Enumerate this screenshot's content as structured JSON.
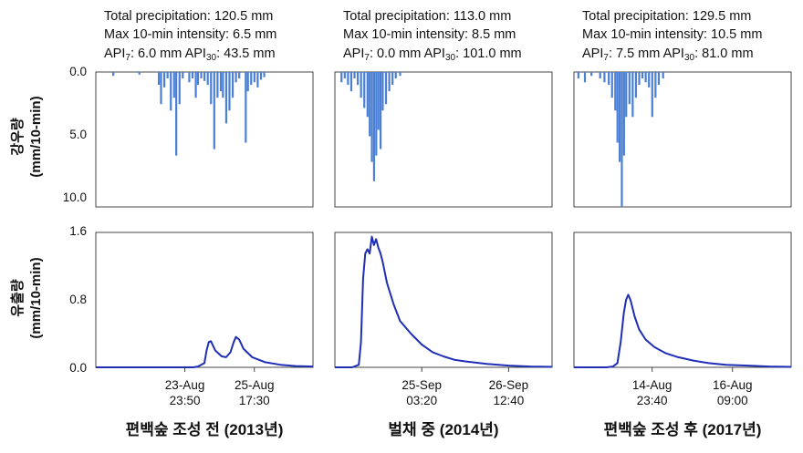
{
  "figure": {
    "rain_ylabel": [
      "강우량",
      "(mm/10-min)"
    ],
    "flow_ylabel": [
      "유출량",
      "(mm/10-min)"
    ],
    "rain_ticks": [
      "0.0",
      "5.0",
      "10.0"
    ],
    "flow_ticks": [
      "1.6",
      "0.8",
      "0.0"
    ]
  },
  "chart_data": [
    {
      "type": "bar",
      "period": "편백숲 조성 전 (2013년)",
      "stats": {
        "line1": "Total precipitation: 120.5 mm",
        "line2": "Max 10-min intensity: 6.5 mm",
        "api7_label": "API",
        "api7_sub": "7",
        "api7_value": ": 6.0 mm",
        "api30_label": "API",
        "api30_sub": "30",
        "api30_value": ": 43.5 mm"
      },
      "rainfall": {
        "ylim": [
          0,
          10.5
        ],
        "inverted": true,
        "bars": [
          {
            "x": 0.08,
            "v": 0.3
          },
          {
            "x": 0.2,
            "v": 0.2
          },
          {
            "x": 0.29,
            "v": 1.0
          },
          {
            "x": 0.3,
            "v": 2.5
          },
          {
            "x": 0.315,
            "v": 1.2
          },
          {
            "x": 0.33,
            "v": 0.5
          },
          {
            "x": 0.345,
            "v": 3.0
          },
          {
            "x": 0.36,
            "v": 2.0
          },
          {
            "x": 0.37,
            "v": 6.5
          },
          {
            "x": 0.385,
            "v": 2.5
          },
          {
            "x": 0.4,
            "v": 0.5
          },
          {
            "x": 0.43,
            "v": 0.8
          },
          {
            "x": 0.445,
            "v": 0.5
          },
          {
            "x": 0.46,
            "v": 2.0
          },
          {
            "x": 0.47,
            "v": 1.0
          },
          {
            "x": 0.485,
            "v": 0.5
          },
          {
            "x": 0.5,
            "v": 0.7
          },
          {
            "x": 0.515,
            "v": 1.0
          },
          {
            "x": 0.53,
            "v": 2.5
          },
          {
            "x": 0.545,
            "v": 6.0
          },
          {
            "x": 0.56,
            "v": 2.0
          },
          {
            "x": 0.575,
            "v": 1.5
          },
          {
            "x": 0.585,
            "v": 2.0
          },
          {
            "x": 0.6,
            "v": 4.0
          },
          {
            "x": 0.615,
            "v": 3.0
          },
          {
            "x": 0.63,
            "v": 2.0
          },
          {
            "x": 0.645,
            "v": 0.8
          },
          {
            "x": 0.66,
            "v": 0.5
          },
          {
            "x": 0.69,
            "v": 5.5
          },
          {
            "x": 0.7,
            "v": 1.5
          },
          {
            "x": 0.715,
            "v": 1.0
          },
          {
            "x": 0.73,
            "v": 0.8
          },
          {
            "x": 0.745,
            "v": 1.2
          },
          {
            "x": 0.76,
            "v": 0.6
          },
          {
            "x": 0.775,
            "v": 0.4
          }
        ]
      },
      "runoff": {
        "ylim": [
          0,
          1.6
        ],
        "points": [
          [
            0,
            0
          ],
          [
            0.3,
            0
          ],
          [
            0.45,
            0
          ],
          [
            0.47,
            0.01
          ],
          [
            0.5,
            0.05
          ],
          [
            0.51,
            0.2
          ],
          [
            0.52,
            0.3
          ],
          [
            0.53,
            0.31
          ],
          [
            0.55,
            0.2
          ],
          [
            0.58,
            0.13
          ],
          [
            0.6,
            0.12
          ],
          [
            0.62,
            0.18
          ],
          [
            0.635,
            0.3
          ],
          [
            0.645,
            0.36
          ],
          [
            0.66,
            0.33
          ],
          [
            0.68,
            0.22
          ],
          [
            0.72,
            0.12
          ],
          [
            0.78,
            0.06
          ],
          [
            0.85,
            0.03
          ],
          [
            0.92,
            0.015
          ],
          [
            1.0,
            0.01
          ]
        ]
      },
      "xticks": [
        {
          "pos": 0.41,
          "line1": "23-Aug",
          "line2": "23:50"
        },
        {
          "pos": 0.73,
          "line1": "25-Aug",
          "line2": "17:30"
        }
      ]
    },
    {
      "type": "bar",
      "period": "벌채 중 (2014년)",
      "stats": {
        "line1": "Total precipitation: 113.0 mm",
        "line2": "Max 10-min intensity: 8.5 mm",
        "api7_label": "API",
        "api7_sub": "7",
        "api7_value": ": 0.0 mm",
        "api30_label": "API",
        "api30_sub": "30",
        "api30_value": ": 101.0 mm"
      },
      "rainfall": {
        "ylim": [
          0,
          10.5
        ],
        "inverted": true,
        "bars": [
          {
            "x": 0.03,
            "v": 0.8
          },
          {
            "x": 0.045,
            "v": 0.5
          },
          {
            "x": 0.06,
            "v": 1.0
          },
          {
            "x": 0.075,
            "v": 1.5
          },
          {
            "x": 0.09,
            "v": 0.5
          },
          {
            "x": 0.105,
            "v": 1.0
          },
          {
            "x": 0.12,
            "v": 2.0
          },
          {
            "x": 0.135,
            "v": 2.8
          },
          {
            "x": 0.15,
            "v": 3.5
          },
          {
            "x": 0.16,
            "v": 5.0
          },
          {
            "x": 0.17,
            "v": 7.0
          },
          {
            "x": 0.18,
            "v": 8.5
          },
          {
            "x": 0.19,
            "v": 6.5
          },
          {
            "x": 0.2,
            "v": 4.5
          },
          {
            "x": 0.21,
            "v": 6.0
          },
          {
            "x": 0.22,
            "v": 3.0
          },
          {
            "x": 0.235,
            "v": 2.5
          },
          {
            "x": 0.25,
            "v": 1.5
          },
          {
            "x": 0.265,
            "v": 1.0
          },
          {
            "x": 0.28,
            "v": 0.5
          },
          {
            "x": 0.3,
            "v": 0.3
          }
        ]
      },
      "runoff": {
        "ylim": [
          0,
          1.6
        ],
        "points": [
          [
            0,
            0
          ],
          [
            0.08,
            0
          ],
          [
            0.11,
            0.03
          ],
          [
            0.12,
            0.3
          ],
          [
            0.13,
            1.05
          ],
          [
            0.14,
            1.35
          ],
          [
            0.15,
            1.4
          ],
          [
            0.16,
            1.35
          ],
          [
            0.17,
            1.55
          ],
          [
            0.18,
            1.45
          ],
          [
            0.19,
            1.52
          ],
          [
            0.2,
            1.42
          ],
          [
            0.21,
            1.35
          ],
          [
            0.22,
            1.25
          ],
          [
            0.24,
            1.0
          ],
          [
            0.27,
            0.75
          ],
          [
            0.3,
            0.55
          ],
          [
            0.35,
            0.4
          ],
          [
            0.4,
            0.27
          ],
          [
            0.45,
            0.18
          ],
          [
            0.5,
            0.13
          ],
          [
            0.55,
            0.09
          ],
          [
            0.6,
            0.07
          ],
          [
            0.7,
            0.04
          ],
          [
            0.8,
            0.02
          ],
          [
            0.9,
            0.01
          ],
          [
            1.0,
            0.005
          ]
        ]
      },
      "xticks": [
        {
          "pos": 0.4,
          "line1": "25-Sep",
          "line2": "03:20"
        },
        {
          "pos": 0.8,
          "line1": "26-Sep",
          "line2": "12:40"
        }
      ]
    },
    {
      "type": "bar",
      "period": "편백숲 조성 후 (2017년)",
      "stats": {
        "line1": "Total precipitation: 129.5 mm",
        "line2": "Max 10-min intensity: 10.5 mm",
        "api7_label": "API",
        "api7_sub": "7",
        "api7_value": ": 7.5 mm",
        "api30_label": "API",
        "api30_sub": "30",
        "api30_value": ": 81.0 mm"
      },
      "rainfall": {
        "ylim": [
          0,
          10.5
        ],
        "inverted": true,
        "bars": [
          {
            "x": 0.02,
            "v": 0.5
          },
          {
            "x": 0.05,
            "v": 0.8
          },
          {
            "x": 0.08,
            "v": 0.3
          },
          {
            "x": 0.12,
            "v": 0.5
          },
          {
            "x": 0.14,
            "v": 0.8
          },
          {
            "x": 0.16,
            "v": 1.0
          },
          {
            "x": 0.175,
            "v": 2.0
          },
          {
            "x": 0.19,
            "v": 3.0
          },
          {
            "x": 0.2,
            "v": 5.5
          },
          {
            "x": 0.21,
            "v": 7.0
          },
          {
            "x": 0.22,
            "v": 10.5
          },
          {
            "x": 0.23,
            "v": 6.5
          },
          {
            "x": 0.24,
            "v": 3.5
          },
          {
            "x": 0.255,
            "v": 2.5
          },
          {
            "x": 0.27,
            "v": 3.5
          },
          {
            "x": 0.285,
            "v": 2.0
          },
          {
            "x": 0.3,
            "v": 1.0
          },
          {
            "x": 0.315,
            "v": 0.5
          },
          {
            "x": 0.33,
            "v": 0.8
          },
          {
            "x": 0.345,
            "v": 1.2
          },
          {
            "x": 0.36,
            "v": 3.5
          },
          {
            "x": 0.375,
            "v": 2.0
          },
          {
            "x": 0.39,
            "v": 1.0
          },
          {
            "x": 0.41,
            "v": 0.5
          }
        ]
      },
      "runoff": {
        "ylim": [
          0,
          1.6
        ],
        "points": [
          [
            0,
            0
          ],
          [
            0.15,
            0
          ],
          [
            0.18,
            0.01
          ],
          [
            0.2,
            0.05
          ],
          [
            0.215,
            0.3
          ],
          [
            0.23,
            0.65
          ],
          [
            0.24,
            0.8
          ],
          [
            0.25,
            0.86
          ],
          [
            0.26,
            0.8
          ],
          [
            0.28,
            0.6
          ],
          [
            0.3,
            0.45
          ],
          [
            0.33,
            0.33
          ],
          [
            0.37,
            0.24
          ],
          [
            0.42,
            0.17
          ],
          [
            0.48,
            0.12
          ],
          [
            0.55,
            0.08
          ],
          [
            0.62,
            0.05
          ],
          [
            0.7,
            0.03
          ],
          [
            0.8,
            0.02
          ],
          [
            0.9,
            0.01
          ],
          [
            1.0,
            0.005
          ]
        ]
      },
      "xticks": [
        {
          "pos": 0.36,
          "line1": "14-Aug",
          "line2": "23:40"
        },
        {
          "pos": 0.73,
          "line1": "16-Aug",
          "line2": "09:00"
        }
      ]
    }
  ]
}
